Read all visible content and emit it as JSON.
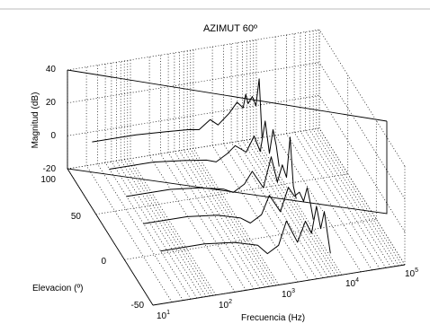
{
  "chart_data": {
    "type": "line",
    "title": "AZIMUT 60º",
    "xlabel": "Frecuencia (Hz)",
    "ylabel": "Elevacion (º)",
    "zlabel": "Magnitud (dB)",
    "x_scale": "log",
    "xlim": [
      10,
      100000
    ],
    "ylim": [
      -50,
      100
    ],
    "zlim": [
      -20,
      40
    ],
    "x_ticks": [
      {
        "base": "10",
        "exp": "1"
      },
      {
        "base": "10",
        "exp": "2"
      },
      {
        "base": "10",
        "exp": "3"
      },
      {
        "base": "10",
        "exp": "4"
      },
      {
        "base": "10",
        "exp": "5"
      }
    ],
    "y_ticks": [
      "-50",
      "0",
      "50",
      "100"
    ],
    "z_ticks": [
      "-20",
      "0",
      "20",
      "40"
    ],
    "grid": true,
    "series": [
      {
        "elevation": 90,
        "x": [
          20,
          100,
          300,
          700,
          1000,
          1500,
          2000,
          3000,
          4000,
          5000,
          5500,
          6000,
          7000,
          8000,
          9000,
          10000
        ],
        "z": [
          0,
          0,
          -1,
          -2,
          -3,
          2,
          -2,
          4,
          10,
          6,
          14,
          8,
          12,
          6,
          22,
          -14
        ]
      },
      {
        "elevation": 60,
        "x": [
          20,
          100,
          300,
          700,
          1000,
          1500,
          2000,
          3000,
          4000,
          5000,
          6000,
          7000,
          8000,
          9000,
          10000
        ],
        "z": [
          0,
          0,
          -2,
          -4,
          -6,
          -2,
          2,
          -3,
          6,
          -4,
          14,
          -6,
          8,
          -2,
          -15
        ]
      },
      {
        "elevation": 30,
        "x": [
          20,
          100,
          300,
          700,
          1000,
          1500,
          2000,
          3000,
          4000,
          5000,
          6000,
          7000,
          8000,
          9000,
          10000
        ],
        "z": [
          0,
          0,
          -2,
          -5,
          -8,
          -4,
          3,
          -8,
          10,
          -6,
          4,
          -4,
          20,
          -10,
          -18
        ]
      },
      {
        "elevation": 0,
        "x": [
          20,
          100,
          300,
          700,
          1000,
          1500,
          2000,
          3000,
          4000,
          5000,
          6000,
          7000,
          8000,
          9000,
          10000
        ],
        "z": [
          0,
          0,
          -2,
          -6,
          -10,
          -6,
          5,
          -6,
          8,
          2,
          4,
          -2,
          6,
          -4,
          -14
        ]
      },
      {
        "elevation": -30,
        "x": [
          20,
          100,
          300,
          700,
          1000,
          1500,
          2000,
          3000,
          4000,
          5000,
          6000,
          7000,
          8000,
          9000,
          10000
        ],
        "z": [
          0,
          0,
          -2,
          -6,
          -12,
          -8,
          6,
          -8,
          4,
          -4,
          12,
          -2,
          8,
          -6,
          -18
        ]
      }
    ]
  }
}
